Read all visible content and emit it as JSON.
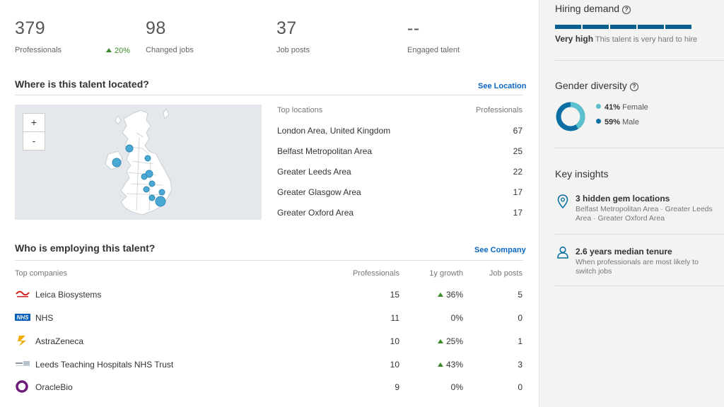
{
  "stats": [
    {
      "value": "379",
      "label": "Professionals"
    },
    {
      "value": "98",
      "label": "Changed jobs"
    },
    {
      "value": "37",
      "label": "Job posts"
    },
    {
      "value": "--",
      "label": "Engaged talent"
    }
  ],
  "growth": "20%",
  "location": {
    "title": "Where is this talent located?",
    "link": "See Location",
    "zoom_in": "+",
    "zoom_out": "-",
    "col_location": "Top locations",
    "col_count": "Professionals",
    "rows": [
      {
        "name": "London Area, United Kingdom",
        "value": "67"
      },
      {
        "name": "Belfast Metropolitan Area",
        "value": "25"
      },
      {
        "name": "Greater Leeds Area",
        "value": "22"
      },
      {
        "name": "Greater Glasgow Area",
        "value": "17"
      },
      {
        "name": "Greater Oxford Area",
        "value": "17"
      }
    ]
  },
  "companies": {
    "title": "Who is employing this talent?",
    "link": "See Company",
    "col_company": "Top companies",
    "col_prof": "Professionals",
    "col_growth": "1y growth",
    "col_jobs": "Job posts",
    "rows": [
      {
        "name": "Leica Biosystems",
        "prof": "15",
        "growth": "36%",
        "up": true,
        "jobs": "5",
        "logo": "leica-logo"
      },
      {
        "name": "NHS",
        "prof": "11",
        "growth": "0%",
        "up": false,
        "jobs": "0",
        "logo": "nhs-logo"
      },
      {
        "name": "AstraZeneca",
        "prof": "10",
        "growth": "25%",
        "up": true,
        "jobs": "1",
        "logo": "astrazeneca-logo"
      },
      {
        "name": "Leeds Teaching Hospitals NHS Trust",
        "prof": "10",
        "growth": "43%",
        "up": true,
        "jobs": "3",
        "logo": "leeds-hospitals-logo"
      },
      {
        "name": "OracleBio",
        "prof": "9",
        "growth": "0%",
        "up": false,
        "jobs": "0",
        "logo": "oraclebio-logo"
      }
    ]
  },
  "hiring": {
    "title": "Hiring demand",
    "level": "Very high",
    "desc": "This talent is very hard to hire",
    "bar_color": "#0b5f8f"
  },
  "gender": {
    "title": "Gender diversity",
    "female_pct": "41%",
    "female_label": "Female",
    "male_pct": "59%",
    "male_label": "Male",
    "female_color": "#5bc0ce",
    "male_color": "#0b6fa4",
    "female_fraction": 0.41
  },
  "insights": {
    "title": "Key insights",
    "items": [
      {
        "title": "3 hidden gem locations",
        "sub": "Belfast Metropolitan Area · Greater Leeds Area · Greater Oxford Area",
        "icon": "location-pin-icon"
      },
      {
        "title": "2.6 years median tenure",
        "sub": "When professionals are most likely to switch jobs",
        "icon": "person-icon"
      }
    ]
  }
}
